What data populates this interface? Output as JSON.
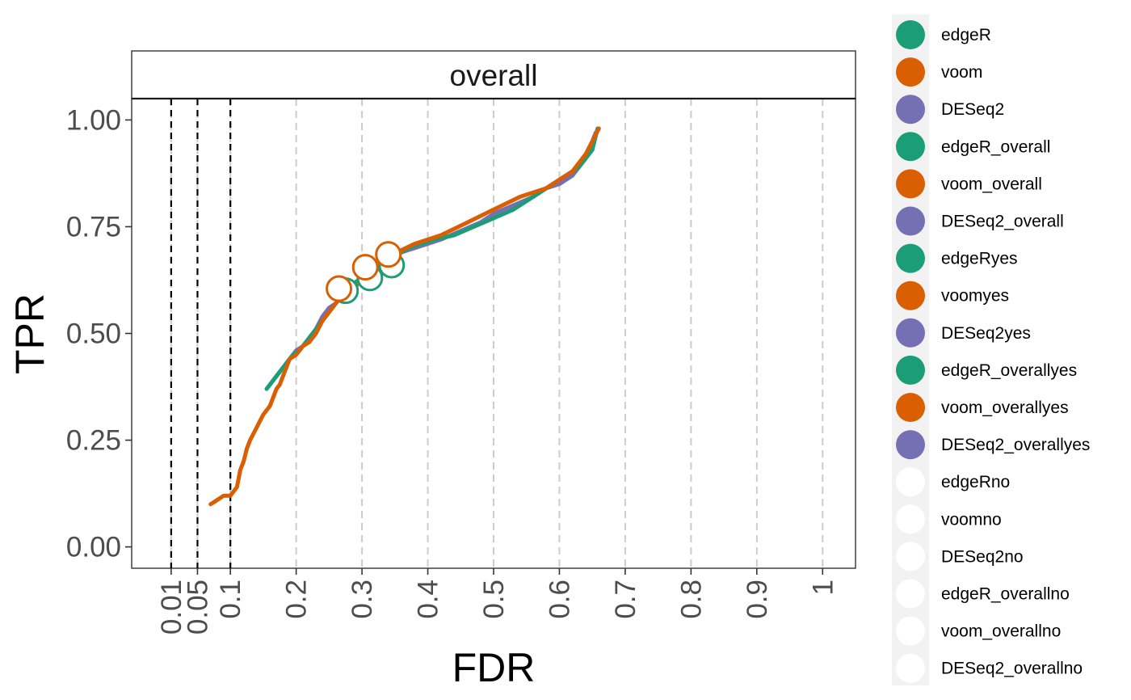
{
  "chart_data": {
    "type": "line",
    "panel_title": "overall",
    "xlabel": "FDR",
    "ylabel": "TPR",
    "xlim": [
      -0.05,
      1.05
    ],
    "ylim": [
      -0.05,
      1.05
    ],
    "x_ticks": [
      0.01,
      0.05,
      0.1,
      0.2,
      0.3,
      0.4,
      0.5,
      0.6,
      0.7,
      0.8,
      0.9,
      1
    ],
    "x_tick_labels": [
      "0.01",
      "0.05",
      "0.1",
      "0.2",
      "0.3",
      "0.4",
      "0.5",
      "0.6",
      "0.7",
      "0.8",
      "0.9",
      "1"
    ],
    "y_ticks": [
      0,
      0.25,
      0.5,
      0.75,
      1
    ],
    "y_tick_labels": [
      "0.00",
      "0.25",
      "0.50",
      "0.75",
      "1.00"
    ],
    "fdr_thresholds": [
      0.01,
      0.05,
      0.1
    ],
    "grid": "vertical dashed",
    "legend_position": "right",
    "colors": {
      "edgeR": "#1b9e77",
      "voom": "#d95f02",
      "DESeq2": "#7570b3",
      "empty": "#ffffff"
    },
    "series": [
      {
        "name": "DESeq2",
        "color": "#7570b3",
        "x": [
          0.16,
          0.17,
          0.18,
          0.19,
          0.2,
          0.21,
          0.22,
          0.23,
          0.24,
          0.25,
          0.26,
          0.27,
          0.28,
          0.3,
          0.32,
          0.34,
          0.36,
          0.38,
          0.4,
          0.42,
          0.45,
          0.48,
          0.5,
          0.53,
          0.56,
          0.58,
          0.6,
          0.62,
          0.64,
          0.655
        ],
        "y": [
          0.38,
          0.4,
          0.42,
          0.44,
          0.46,
          0.47,
          0.49,
          0.51,
          0.54,
          0.56,
          0.57,
          0.59,
          0.6,
          0.63,
          0.65,
          0.67,
          0.69,
          0.7,
          0.71,
          0.72,
          0.74,
          0.76,
          0.78,
          0.8,
          0.82,
          0.84,
          0.85,
          0.87,
          0.91,
          0.97
        ]
      },
      {
        "name": "edgeR",
        "color": "#1b9e77",
        "x": [
          0.155,
          0.165,
          0.175,
          0.185,
          0.195,
          0.205,
          0.215,
          0.225,
          0.235,
          0.245,
          0.255,
          0.265,
          0.275,
          0.29,
          0.31,
          0.33,
          0.35,
          0.37,
          0.39,
          0.41,
          0.44,
          0.47,
          0.5,
          0.53,
          0.56,
          0.59,
          0.61,
          0.63,
          0.65,
          0.658
        ],
        "y": [
          0.37,
          0.39,
          0.41,
          0.43,
          0.45,
          0.46,
          0.48,
          0.5,
          0.52,
          0.54,
          0.56,
          0.58,
          0.6,
          0.62,
          0.64,
          0.66,
          0.68,
          0.7,
          0.71,
          0.72,
          0.73,
          0.75,
          0.77,
          0.79,
          0.82,
          0.85,
          0.87,
          0.89,
          0.93,
          0.98
        ]
      },
      {
        "name": "voom",
        "color": "#d95f02",
        "x": [
          0.07,
          0.08,
          0.09,
          0.1,
          0.11,
          0.115,
          0.12,
          0.125,
          0.13,
          0.14,
          0.15,
          0.16,
          0.17,
          0.175,
          0.18,
          0.19,
          0.2,
          0.21,
          0.22,
          0.23,
          0.24,
          0.25,
          0.26,
          0.27,
          0.29,
          0.31,
          0.34,
          0.38,
          0.42,
          0.46,
          0.5,
          0.54,
          0.58,
          0.62,
          0.64,
          0.66
        ],
        "y": [
          0.1,
          0.11,
          0.12,
          0.12,
          0.14,
          0.18,
          0.2,
          0.23,
          0.25,
          0.28,
          0.31,
          0.33,
          0.37,
          0.38,
          0.4,
          0.44,
          0.45,
          0.47,
          0.48,
          0.5,
          0.53,
          0.55,
          0.57,
          0.59,
          0.61,
          0.64,
          0.68,
          0.71,
          0.73,
          0.76,
          0.79,
          0.82,
          0.84,
          0.88,
          0.92,
          0.98
        ]
      }
    ],
    "points": [
      {
        "name": "edgeR",
        "color": "#1b9e77",
        "x": [
          0.275,
          0.312,
          0.345
        ],
        "y": [
          0.6,
          0.63,
          0.66
        ]
      },
      {
        "name": "voom",
        "color": "#d95f02",
        "x": [
          0.265,
          0.305,
          0.34
        ],
        "y": [
          0.605,
          0.655,
          0.685
        ]
      }
    ],
    "legend": [
      {
        "label": "edgeR",
        "color": "#1b9e77"
      },
      {
        "label": "voom",
        "color": "#d95f02"
      },
      {
        "label": "DESeq2",
        "color": "#7570b3"
      },
      {
        "label": "edgeR_overall",
        "color": "#1b9e77"
      },
      {
        "label": "voom_overall",
        "color": "#d95f02"
      },
      {
        "label": "DESeq2_overall",
        "color": "#7570b3"
      },
      {
        "label": "edgeRyes",
        "color": "#1b9e77"
      },
      {
        "label": "voomyes",
        "color": "#d95f02"
      },
      {
        "label": "DESeq2yes",
        "color": "#7570b3"
      },
      {
        "label": "edgeR_overallyes",
        "color": "#1b9e77"
      },
      {
        "label": "voom_overallyes",
        "color": "#d95f02"
      },
      {
        "label": "DESeq2_overallyes",
        "color": "#7570b3"
      },
      {
        "label": "edgeRno",
        "color": "#ffffff"
      },
      {
        "label": "voomno",
        "color": "#ffffff"
      },
      {
        "label": "DESeq2no",
        "color": "#ffffff"
      },
      {
        "label": "edgeR_overallno",
        "color": "#ffffff"
      },
      {
        "label": "voom_overallno",
        "color": "#ffffff"
      },
      {
        "label": "DESeq2_overallno",
        "color": "#ffffff"
      }
    ]
  }
}
